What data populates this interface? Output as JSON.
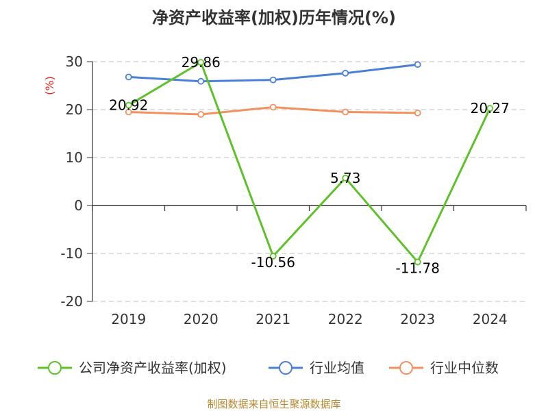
{
  "chart_data": {
    "type": "line",
    "title": "净资产收益率(加权)历年情况(%)",
    "ylabel": "(%)",
    "xlabel": "",
    "categories": [
      "2019",
      "2020",
      "2021",
      "2022",
      "2023",
      "2024"
    ],
    "ylim": [
      -20,
      30
    ],
    "yticks": [
      30,
      20,
      10,
      0,
      -10,
      -20
    ],
    "grid": true,
    "legend_position": "bottom",
    "series": [
      {
        "name": "公司净资产收益率(加权)",
        "color": "#5ec12a",
        "values": [
          20.92,
          29.86,
          -10.56,
          5.73,
          -11.78,
          20.27
        ],
        "labels": [
          "20.92",
          "29.86",
          "-10.56",
          "5.73",
          "-11.78",
          "20.27"
        ]
      },
      {
        "name": "行业均值",
        "color": "#4a7fd6",
        "values": [
          26.8,
          25.9,
          26.2,
          27.6,
          29.4,
          null
        ]
      },
      {
        "name": "行业中位数",
        "color": "#f3915e",
        "values": [
          19.5,
          19.0,
          20.5,
          19.5,
          19.3,
          null
        ]
      }
    ],
    "source": "制图数据来自恒生聚源数据库"
  }
}
